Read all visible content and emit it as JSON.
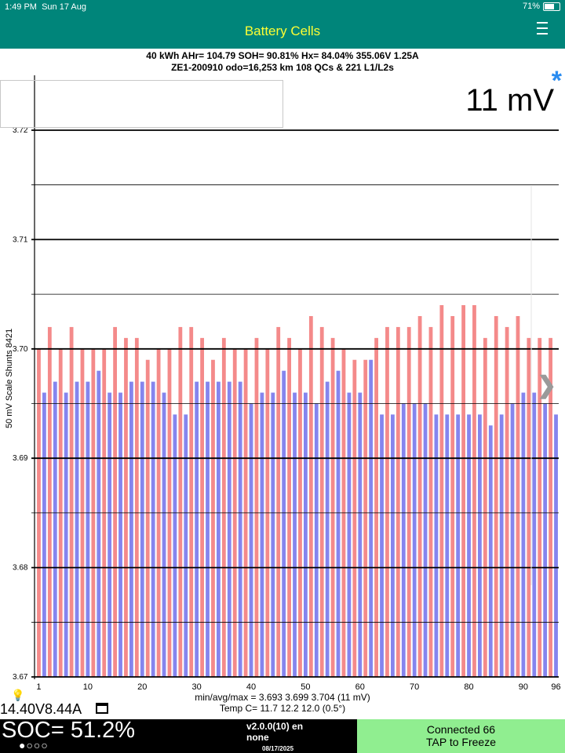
{
  "status": {
    "time": "1:49 PM",
    "date": "Sun 17 Aug",
    "battery": "71%",
    "battery_level": 0.71
  },
  "nav": {
    "title": "Battery Cells",
    "menu_icon": "hamburger-menu-icon"
  },
  "header": {
    "line1": "40 kWh  AHr= 104.79  SOH= 90.81%   Hx= 84.04%   355.06V 1.25A",
    "line2": "ZE1-200910 odo=16,253 km  108 QCs & 221 L1/L2s"
  },
  "readout": {
    "spread": "11 mV",
    "asterisk": "*"
  },
  "axis": {
    "ylabel": "50 mV Scale   Shunts 8421"
  },
  "chart_data": {
    "type": "bar",
    "ylim": [
      3.67,
      3.72
    ],
    "yticks": [
      "3.67",
      "3.68",
      "3.69",
      "3.70",
      "3.71",
      "3.72"
    ],
    "xticks": [
      1,
      10,
      20,
      30,
      40,
      50,
      60,
      70,
      80,
      90,
      96
    ],
    "grid": true,
    "cells_x": [
      1,
      2,
      3,
      4,
      5,
      6,
      7,
      8,
      9,
      10,
      11,
      12,
      13,
      14,
      15,
      16,
      17,
      18,
      19,
      20,
      21,
      22,
      23,
      24,
      25,
      26,
      27,
      28,
      29,
      30,
      31,
      32,
      33,
      34,
      35,
      36,
      37,
      38,
      39,
      40,
      41,
      42,
      43,
      44,
      45,
      46,
      47,
      48,
      49,
      50,
      51,
      52,
      53,
      54,
      55,
      56,
      57,
      58,
      59,
      60,
      61,
      62,
      63,
      64,
      65,
      66,
      67,
      68,
      69,
      70,
      71,
      72,
      73,
      74,
      75,
      76,
      77,
      78,
      79,
      80,
      81,
      82,
      83,
      84,
      85,
      86,
      87,
      88,
      89,
      90,
      91,
      92,
      93,
      94,
      95,
      96
    ],
    "values": [
      3.7,
      3.696,
      3.702,
      3.697,
      3.7,
      3.696,
      3.702,
      3.697,
      3.7,
      3.697,
      3.7,
      3.698,
      3.7,
      3.696,
      3.702,
      3.696,
      3.701,
      3.697,
      3.701,
      3.697,
      3.699,
      3.697,
      3.7,
      3.696,
      3.7,
      3.694,
      3.702,
      3.694,
      3.702,
      3.697,
      3.701,
      3.697,
      3.699,
      3.697,
      3.701,
      3.697,
      3.7,
      3.697,
      3.7,
      3.695,
      3.701,
      3.696,
      3.7,
      3.696,
      3.702,
      3.698,
      3.701,
      3.696,
      3.7,
      3.696,
      3.703,
      3.695,
      3.702,
      3.697,
      3.701,
      3.698,
      3.7,
      3.696,
      3.699,
      3.696,
      3.699,
      3.699,
      3.701,
      3.694,
      3.702,
      3.694,
      3.702,
      3.695,
      3.702,
      3.695,
      3.703,
      3.695,
      3.702,
      3.694,
      3.704,
      3.694,
      3.703,
      3.694,
      3.704,
      3.694,
      3.704,
      3.694,
      3.701,
      3.693,
      3.703,
      3.694,
      3.702,
      3.695,
      3.703,
      3.696,
      3.701,
      3.696,
      3.701,
      3.695,
      3.701,
      3.694
    ],
    "colors": {
      "odd": "#f48a8a",
      "even": "#8585ee",
      "max": "#8585ee"
    }
  },
  "stats": {
    "line1": "min/avg/max = 3.693 3.699 3.704  (11 mV)",
    "line2": "Temp C= 11.7  12.2  12.0  (0.5°)"
  },
  "footer": {
    "voltage": "14.40V8.44A",
    "soc": "SOC= 51.2%",
    "dots": "●○○○",
    "version": "v2.0.0(10) en",
    "none": "none",
    "date": "08/17/2025",
    "connected": "Connected 66",
    "tap": "TAP to Freeze",
    "connected_color": "#90ee90"
  }
}
